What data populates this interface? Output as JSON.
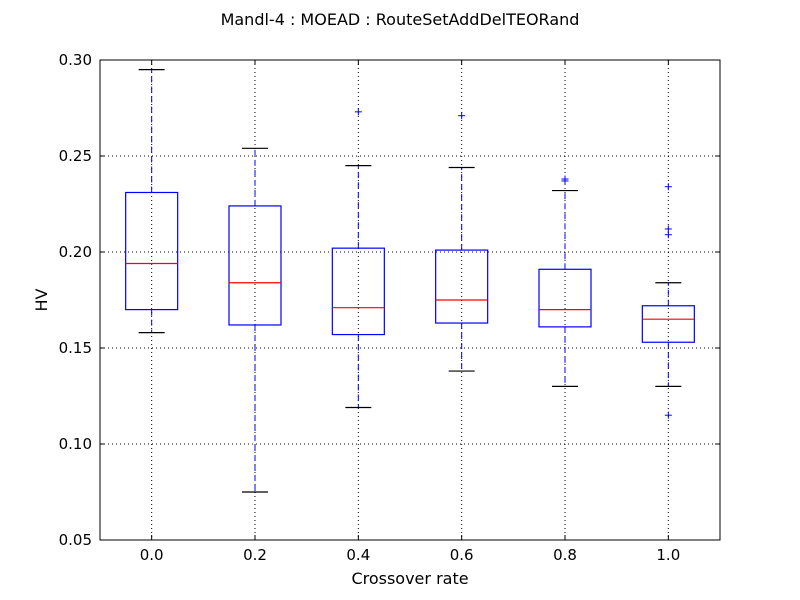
{
  "chart_data": {
    "type": "box",
    "title": "Mandl-4 : MOEAD : RouteSetAddDelTEORand",
    "xlabel": "Crossover rate",
    "ylabel": "HV",
    "ylim": [
      0.05,
      0.3
    ],
    "yticks": [
      "0.05",
      "0.10",
      "0.15",
      "0.20",
      "0.25",
      "0.30"
    ],
    "categories": [
      "0.0",
      "0.2",
      "0.4",
      "0.6",
      "0.8",
      "1.0"
    ],
    "grid": true,
    "colors": {
      "box": "#0000ff",
      "median": "#ff0000",
      "whisker": "#0000ff",
      "cap": "#000000",
      "flier": "#0000ff"
    },
    "boxes": [
      {
        "whislo": 0.158,
        "q1": 0.17,
        "med": 0.194,
        "q3": 0.231,
        "whishi": 0.295,
        "fliers": []
      },
      {
        "whislo": 0.075,
        "q1": 0.162,
        "med": 0.184,
        "q3": 0.224,
        "whishi": 0.254,
        "fliers": []
      },
      {
        "whislo": 0.119,
        "q1": 0.157,
        "med": 0.171,
        "q3": 0.202,
        "whishi": 0.245,
        "fliers": [
          0.273
        ]
      },
      {
        "whislo": 0.138,
        "q1": 0.163,
        "med": 0.175,
        "q3": 0.201,
        "whishi": 0.244,
        "fliers": [
          0.271
        ]
      },
      {
        "whislo": 0.13,
        "q1": 0.161,
        "med": 0.17,
        "q3": 0.191,
        "whishi": 0.232,
        "fliers": [
          0.237,
          0.238
        ]
      },
      {
        "whislo": 0.13,
        "q1": 0.153,
        "med": 0.165,
        "q3": 0.172,
        "whishi": 0.184,
        "fliers": [
          0.234,
          0.212,
          0.209,
          0.115
        ]
      }
    ]
  }
}
